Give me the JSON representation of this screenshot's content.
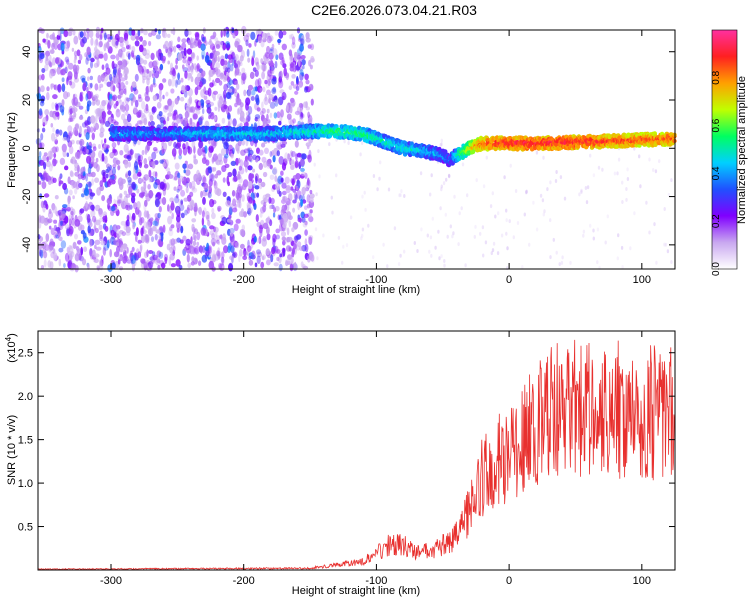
{
  "title": "C2E6.2026.073.04.21.R03",
  "chart_data": [
    {
      "type": "heatmap",
      "xlabel": "Height of straight line (km)",
      "ylabel": "Frequency (Hz)",
      "xlim": [
        -355,
        125
      ],
      "ylim": [
        -50,
        49
      ],
      "x_ticks": [
        -300,
        -200,
        -100,
        0,
        100
      ],
      "x_tick_labels": [
        "-300",
        "-200",
        "-100",
        "0",
        "100"
      ],
      "y_ticks": [
        -40,
        -20,
        0,
        20,
        40
      ],
      "y_tick_labels": [
        "-40",
        "-20",
        "0",
        "20",
        "40"
      ],
      "colorbar": {
        "label": "Normalized spectral amplitude",
        "range": [
          0,
          1
        ],
        "ticks": [
          0.0,
          0.2,
          0.4,
          0.6,
          0.8
        ],
        "tick_labels": [
          "0.0",
          "0.2",
          "0.4",
          "0.6",
          "0.8"
        ],
        "colors": [
          "#ffffff",
          "#c9a8f0",
          "#8000ff",
          "#2050ff",
          "#00d0ff",
          "#00ff60",
          "#c0ff00",
          "#ffa000",
          "#ff2020",
          "#ff30a0"
        ]
      },
      "noise_region_x": [
        -355,
        -148
      ],
      "ridge": {
        "x": [
          -300,
          -260,
          -220,
          -180,
          -150,
          -130,
          -110,
          -95,
          -80,
          -65,
          -50,
          -45,
          -40,
          -30,
          -20,
          0,
          20,
          50,
          80,
          100,
          125
        ],
        "frequency": [
          6,
          6,
          6,
          6,
          7,
          7,
          6,
          3,
          0,
          -1,
          -3,
          -5,
          -3,
          0,
          2,
          2,
          2,
          2.5,
          3,
          3.5,
          4
        ],
        "amplitude": [
          0.4,
          0.4,
          0.45,
          0.45,
          0.5,
          0.55,
          0.55,
          0.5,
          0.5,
          0.45,
          0.4,
          0.35,
          0.5,
          0.7,
          0.85,
          0.9,
          0.9,
          0.9,
          0.85,
          0.85,
          0.85
        ]
      }
    },
    {
      "type": "line",
      "xlabel": "Height of straight line (km)",
      "ylabel": "SNR (10 * v/v)",
      "multiplier_label": "(x10",
      "multiplier_exp": "4",
      "multiplier_close": ")",
      "xlim": [
        -355,
        125
      ],
      "ylim": [
        0,
        2.75
      ],
      "x_ticks": [
        -300,
        -200,
        -100,
        0,
        100
      ],
      "x_tick_labels": [
        "-300",
        "-200",
        "-100",
        "0",
        "100"
      ],
      "y_ticks": [
        0.5,
        1.0,
        1.5,
        2.0,
        2.5
      ],
      "y_tick_labels": [
        "0.5",
        "1.0",
        "1.5",
        "2.0",
        "2.5"
      ],
      "series": [
        {
          "name": "SNR",
          "color": "#e8302e",
          "envelope": {
            "x": [
              -355,
              -150,
              -110,
              -90,
              -80,
              -70,
              -55,
              -40,
              -30,
              -20,
              -10,
              0,
              10,
              20,
              30,
              50,
              80,
              100,
              125
            ],
            "y": [
              0.01,
              0.02,
              0.1,
              0.3,
              0.3,
              0.2,
              0.25,
              0.4,
              0.7,
              1.1,
              1.3,
              1.3,
              1.5,
              1.7,
              1.85,
              1.9,
              1.9,
              1.85,
              1.9
            ]
          }
        }
      ]
    }
  ]
}
